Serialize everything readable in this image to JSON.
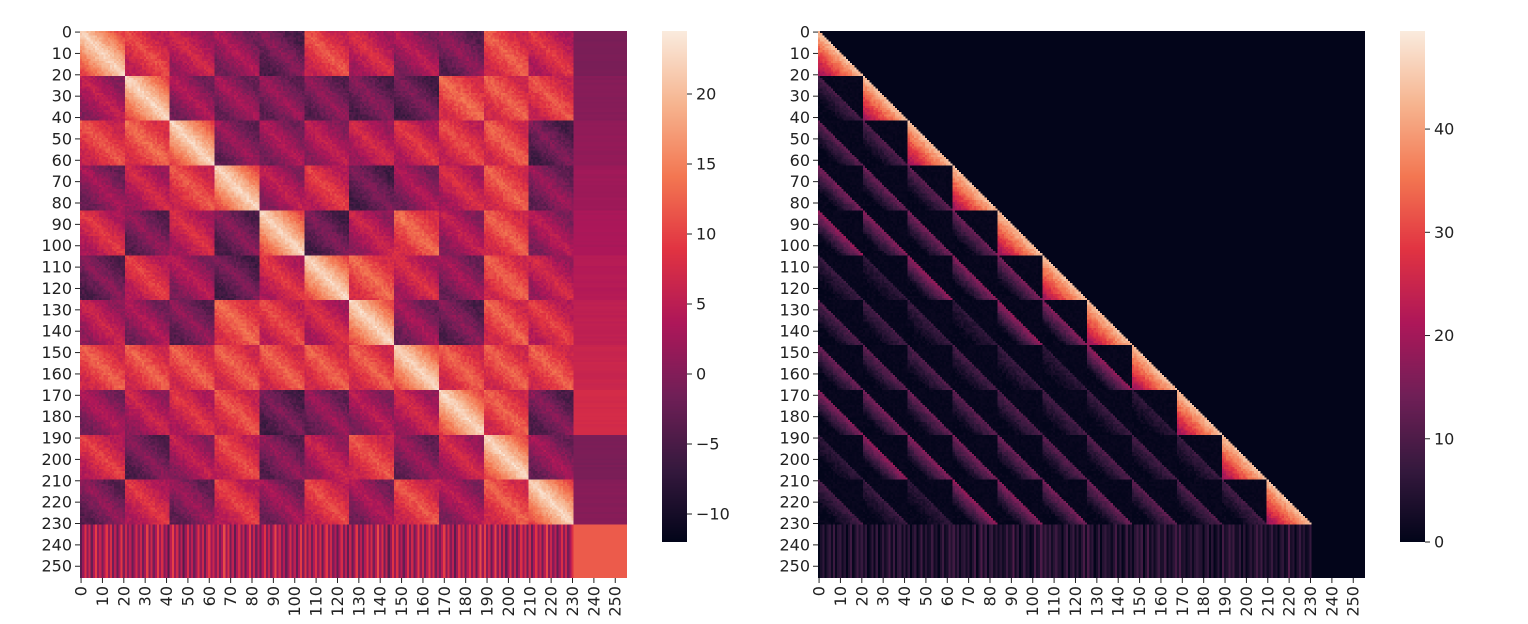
{
  "chart_data": [
    {
      "type": "heatmap",
      "title": "",
      "xlabel": "",
      "ylabel": "",
      "n_rows": 256,
      "n_cols": 256,
      "block_size": 21,
      "num_blocks": 11,
      "pad_start": 231,
      "xticks": [
        "0",
        "10",
        "20",
        "30",
        "40",
        "50",
        "60",
        "70",
        "80",
        "90",
        "100",
        "110",
        "120",
        "130",
        "140",
        "150",
        "160",
        "170",
        "180",
        "190",
        "200",
        "210",
        "220",
        "230",
        "240",
        "250"
      ],
      "yticks": [
        "0",
        "10",
        "20",
        "30",
        "40",
        "50",
        "60",
        "70",
        "80",
        "90",
        "100",
        "110",
        "120",
        "130",
        "140",
        "150",
        "160",
        "170",
        "180",
        "190",
        "200",
        "210",
        "220",
        "230",
        "240",
        "250"
      ],
      "colorbar": {
        "min": -12,
        "max": 24.5,
        "ticks": [
          "−10",
          "−5",
          "0",
          "5",
          "10",
          "15",
          "20"
        ],
        "tick_values": [
          -10,
          -5,
          0,
          5,
          10,
          15,
          20
        ]
      },
      "colormap": "rocket",
      "lower_triangular_mask": false
    },
    {
      "type": "heatmap",
      "title": "",
      "xlabel": "",
      "ylabel": "",
      "n_rows": 256,
      "n_cols": 256,
      "block_size": 21,
      "num_blocks": 11,
      "pad_start": 231,
      "xticks": [
        "0",
        "10",
        "20",
        "30",
        "40",
        "50",
        "60",
        "70",
        "80",
        "90",
        "100",
        "110",
        "120",
        "130",
        "140",
        "150",
        "160",
        "170",
        "180",
        "190",
        "200",
        "210",
        "220",
        "230",
        "240",
        "250"
      ],
      "yticks": [
        "0",
        "10",
        "20",
        "30",
        "40",
        "50",
        "60",
        "70",
        "80",
        "90",
        "100",
        "110",
        "120",
        "130",
        "140",
        "150",
        "160",
        "170",
        "180",
        "190",
        "200",
        "210",
        "220",
        "230",
        "240",
        "250"
      ],
      "colorbar": {
        "min": 0,
        "max": 49.5,
        "ticks": [
          "0",
          "10",
          "20",
          "30",
          "40"
        ],
        "tick_values": [
          0,
          10,
          20,
          30,
          40
        ]
      },
      "colormap": "rocket",
      "lower_triangular_mask": true
    }
  ],
  "colors": {
    "rocket_stops": [
      "#03051a",
      "#36193e",
      "#701f57",
      "#ae1759",
      "#e13342",
      "#f37651",
      "#f6b48f",
      "#faebdd"
    ]
  }
}
